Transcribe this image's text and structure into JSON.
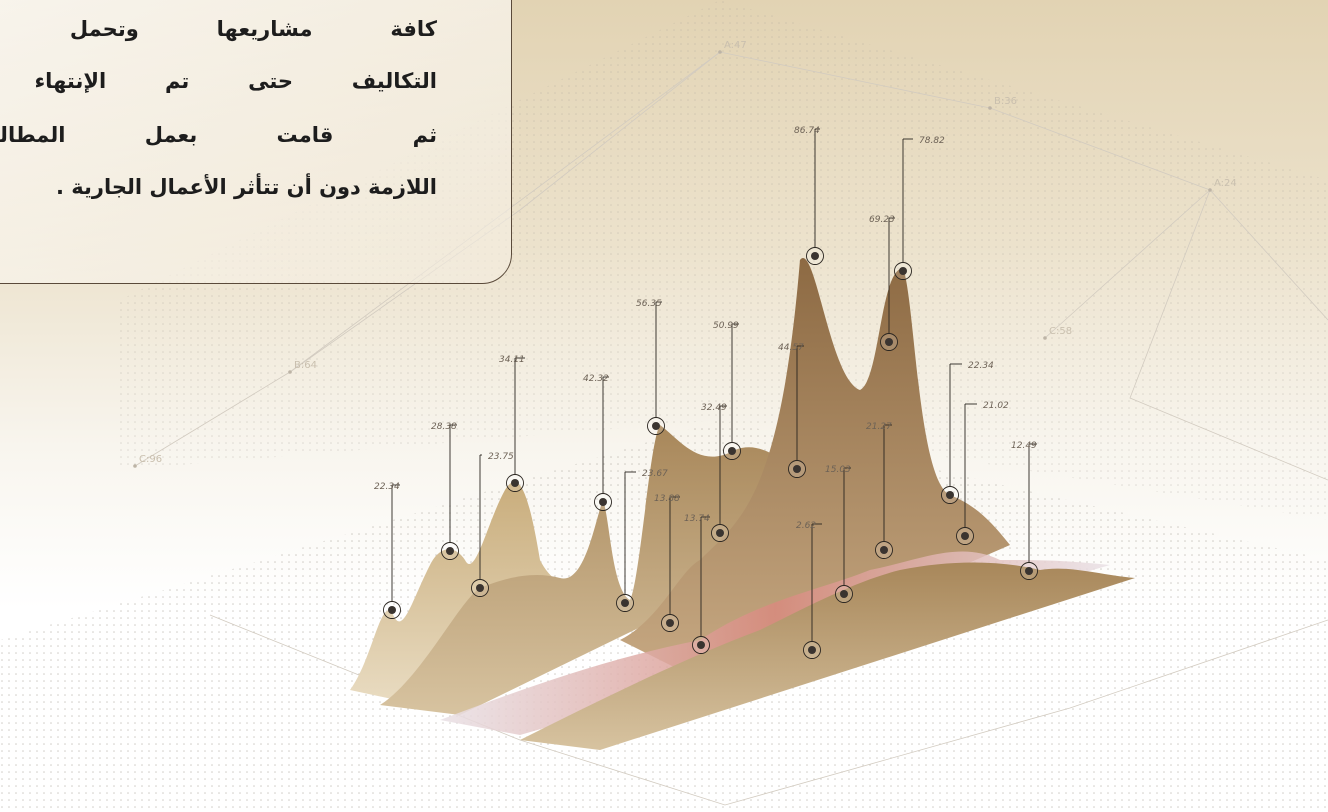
{
  "text_box": {
    "lines": [
      "كافة مشاريعها وتحمل الفرق في",
      "التكاليف حتى تم الإنتهاء من التنفيذ",
      "ثم قامت بعمل المطالبات المالية",
      "اللازمة دون أن تتأثر الأعمال الجارية ."
    ]
  },
  "markers": [
    "22.34",
    "28.38",
    "23.75",
    "34.11",
    "42.32",
    "23.67",
    "56.35",
    "13.88",
    "13.74",
    "32.49",
    "50.99",
    "44.57",
    "86.74",
    "2.62",
    "15.03",
    "78.82",
    "69.23",
    "21.27",
    "22.34",
    "21.02",
    "12.49"
  ],
  "nodes": [
    "A:47",
    "B:36",
    "A:24",
    "C:58",
    "B:64",
    "C:96"
  ]
}
